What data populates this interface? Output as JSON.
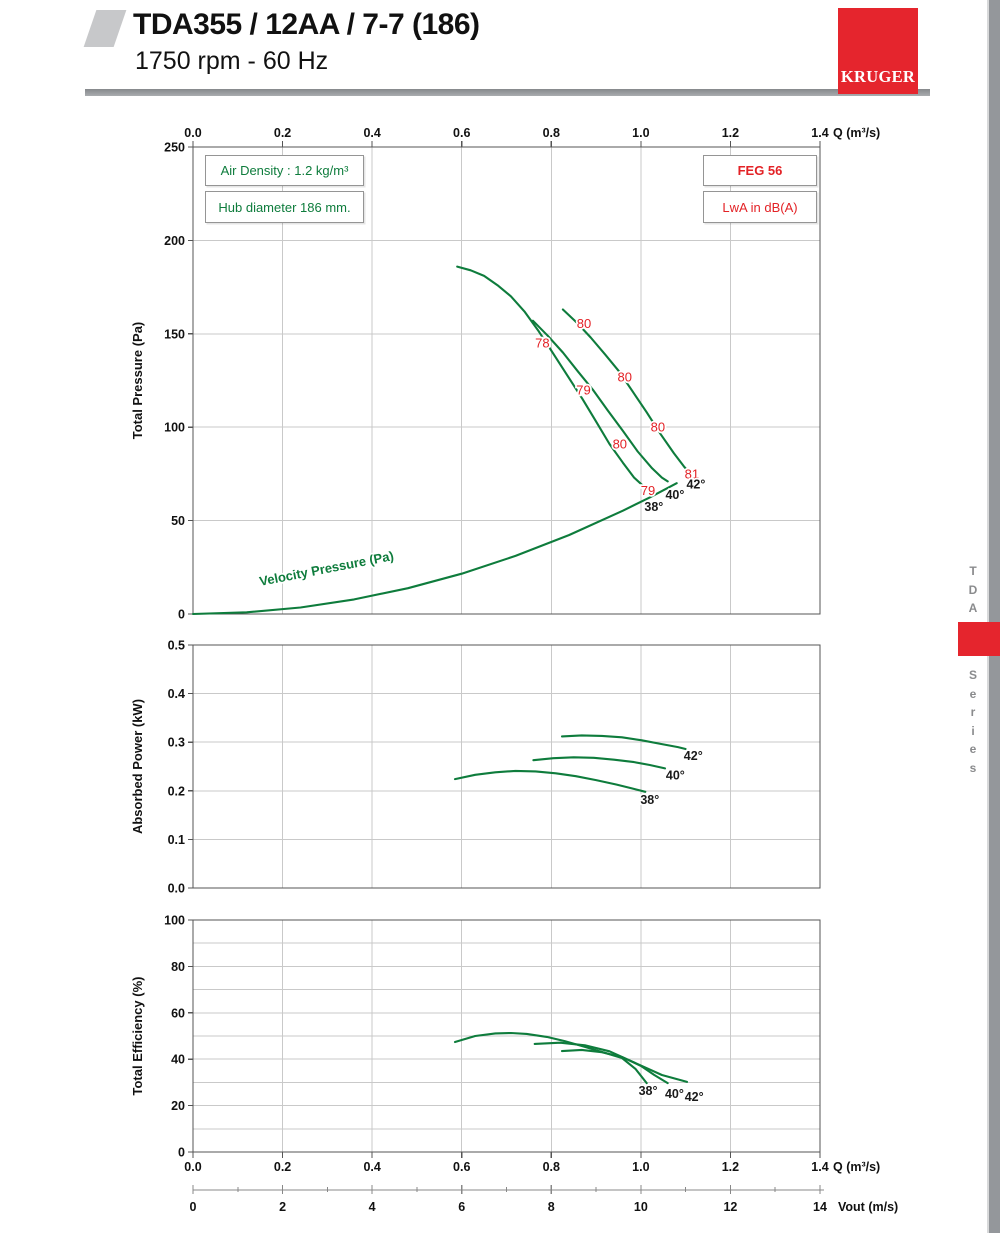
{
  "header": {
    "title": "TDA355 / 12AA / 7-7 (186)",
    "subtitle": "1750 rpm - 60 Hz",
    "logo_text": "KRUGER"
  },
  "sidebar": {
    "top_text": "TDA",
    "bottom_text": "Series"
  },
  "annotations": {
    "air_density": "Air Density : 1.2 kg/m³",
    "hub_diameter": "Hub diameter 186 mm.",
    "feg": "FEG 56",
    "lwa": "LwA in dB(A)"
  },
  "colors": {
    "curve_green": "#0e7c3c",
    "label_red": "#e32226",
    "label_black": "#1a1a1a",
    "grid_gray": "#c9c9c9",
    "axis_gray": "#555555",
    "brand_red": "#e5252d"
  },
  "chart_data": [
    {
      "type": "line",
      "title": "Fan total pressure curves",
      "xlabel": "Q (m³/s)",
      "ylabel": "Total Pressure (Pa)",
      "xlim": [
        0,
        1.4
      ],
      "ylim": [
        0,
        250
      ],
      "xticks": {
        "values": [
          0,
          0.2,
          0.4,
          0.6,
          0.8,
          1.0,
          1.2,
          1.4
        ],
        "labels": [
          "0.0",
          "0.2",
          "0.4",
          "0.6",
          "0.8",
          "1.0",
          "1.2",
          "1.4"
        ]
      },
      "yticks": {
        "values": [
          0,
          50,
          100,
          150,
          200,
          250
        ],
        "labels": [
          "0",
          "50",
          "100",
          "150",
          "200",
          "250"
        ]
      },
      "ygrid": [
        50,
        100,
        150,
        200
      ],
      "xlabel_side": "top",
      "series": [
        {
          "name": "38°",
          "x": [
            0.59,
            0.62,
            0.65,
            0.68,
            0.71,
            0.74,
            0.77,
            0.8,
            0.835,
            0.87,
            0.9,
            0.93,
            0.96,
            0.985,
            1.008
          ],
          "y": [
            186,
            184,
            181,
            176,
            170,
            162,
            152,
            141,
            128,
            115,
            103,
            91,
            81,
            73,
            68
          ]
        },
        {
          "name": "40°",
          "x": [
            0.759,
            0.792,
            0.826,
            0.859,
            0.893,
            0.926,
            0.96,
            0.993,
            1.025,
            1.047,
            1.06
          ],
          "y": [
            157,
            149,
            140,
            130,
            120,
            109,
            98,
            87,
            78,
            73,
            71
          ]
        },
        {
          "name": "42°",
          "x": [
            0.826,
            0.857,
            0.888,
            0.92,
            0.951,
            0.982,
            1.013,
            1.045,
            1.074,
            1.096,
            1.107
          ],
          "y": [
            163,
            156,
            148,
            139,
            130,
            119,
            108,
            96,
            86,
            79,
            76
          ]
        },
        {
          "name": "Velocity Pressure",
          "x": [
            0,
            0.12,
            0.24,
            0.36,
            0.48,
            0.6,
            0.72,
            0.84,
            0.96,
            1.02,
            1.08
          ],
          "y": [
            0,
            0.9,
            3.5,
            7.8,
            13.8,
            21.6,
            31.1,
            42.3,
            55.3,
            62.4,
            70.0
          ]
        }
      ],
      "noise_labels": [
        {
          "text": "78",
          "x": 0.78,
          "y": 145
        },
        {
          "text": "80",
          "x": 0.873,
          "y": 155.5
        },
        {
          "text": "79",
          "x": 0.872,
          "y": 120
        },
        {
          "text": "80",
          "x": 0.964,
          "y": 127
        },
        {
          "text": "80",
          "x": 0.953,
          "y": 91
        },
        {
          "text": "80",
          "x": 1.038,
          "y": 100
        },
        {
          "text": "79",
          "x": 1.016,
          "y": 66
        },
        {
          "text": "81",
          "x": 1.114,
          "y": 75
        }
      ],
      "angle_labels": [
        {
          "text": "38°",
          "x": 1.029,
          "y": 57.5
        },
        {
          "text": "40°",
          "x": 1.076,
          "y": 64
        },
        {
          "text": "42°",
          "x": 1.123,
          "y": 69.5
        }
      ],
      "curve_label": {
        "text": "Velocity Pressure (Pa)",
        "x": 0.3,
        "y": 22,
        "rotation": -11
      }
    },
    {
      "type": "line",
      "title": "Absorbed power curves",
      "xlabel": "",
      "ylabel": "Absorbed Power (kW)",
      "xlim": [
        0,
        1.4
      ],
      "ylim": [
        0,
        0.5
      ],
      "xticks": {
        "values": [
          0,
          0.2,
          0.4,
          0.6,
          0.8,
          1.0,
          1.2,
          1.4
        ],
        "labels": []
      },
      "yticks": {
        "values": [
          0,
          0.1,
          0.2,
          0.3,
          0.4,
          0.5
        ],
        "labels": [
          "0.0",
          "0.1",
          "0.2",
          "0.3",
          "0.4",
          "0.5"
        ]
      },
      "ygrid": [
        0.1,
        0.2,
        0.3,
        0.4
      ],
      "series": [
        {
          "name": "38°",
          "x": [
            0.585,
            0.63,
            0.675,
            0.72,
            0.765,
            0.81,
            0.855,
            0.9,
            0.945,
            0.98,
            1.01
          ],
          "y": [
            0.224,
            0.233,
            0.238,
            0.241,
            0.24,
            0.236,
            0.23,
            0.222,
            0.213,
            0.205,
            0.198
          ]
        },
        {
          "name": "40°",
          "x": [
            0.76,
            0.805,
            0.85,
            0.895,
            0.94,
            0.985,
            1.02,
            1.054
          ],
          "y": [
            0.263,
            0.267,
            0.269,
            0.268,
            0.264,
            0.259,
            0.253,
            0.246
          ]
        },
        {
          "name": "42°",
          "x": [
            0.824,
            0.868,
            0.913,
            0.958,
            1.002,
            1.047,
            1.083,
            1.1
          ],
          "y": [
            0.312,
            0.314,
            0.313,
            0.31,
            0.304,
            0.296,
            0.29,
            0.286
          ]
        }
      ],
      "noise_labels": [],
      "angle_labels": [
        {
          "text": "38°",
          "x": 1.02,
          "y": 0.182
        },
        {
          "text": "40°",
          "x": 1.077,
          "y": 0.233
        },
        {
          "text": "42°",
          "x": 1.117,
          "y": 0.273
        }
      ]
    },
    {
      "type": "line",
      "title": "Total efficiency curves",
      "xlabel": "Q (m³/s)",
      "ylabel": "Total Efficiency (%)",
      "xlim": [
        0,
        1.4
      ],
      "ylim": [
        0,
        100
      ],
      "xticks": {
        "values": [
          0,
          0.2,
          0.4,
          0.6,
          0.8,
          1.0,
          1.2,
          1.4
        ],
        "labels": [
          "0.0",
          "0.2",
          "0.4",
          "0.6",
          "0.8",
          "1.0",
          "1.2",
          "1.4"
        ]
      },
      "yticks": {
        "values": [
          0,
          20,
          40,
          60,
          80,
          100
        ],
        "labels": [
          "0",
          "20",
          "40",
          "60",
          "80",
          "100"
        ]
      },
      "ygrid": [
        10,
        20,
        30,
        40,
        50,
        60,
        70,
        80,
        90
      ],
      "xlabel_side": "bottom",
      "series": [
        {
          "name": "38°",
          "x": [
            0.585,
            0.63,
            0.675,
            0.71,
            0.745,
            0.79,
            0.83,
            0.875,
            0.92,
            0.958,
            0.988,
            1.013
          ],
          "y": [
            47.4,
            50.0,
            51.1,
            51.3,
            50.9,
            49.6,
            47.8,
            45.3,
            42.7,
            40.5,
            35.8,
            29.7
          ]
        },
        {
          "name": "40°",
          "x": [
            0.763,
            0.82,
            0.875,
            0.93,
            0.958,
            1.0,
            1.03,
            1.06
          ],
          "y": [
            46.6,
            47.1,
            46.0,
            43.4,
            41.0,
            37.1,
            33.2,
            29.7
          ]
        },
        {
          "name": "42°",
          "x": [
            0.824,
            0.868,
            0.913,
            0.958,
            1.002,
            1.047,
            1.103
          ],
          "y": [
            43.5,
            44.0,
            43.0,
            40.9,
            37.1,
            33.2,
            30.2
          ]
        }
      ],
      "noise_labels": [],
      "angle_labels": [
        {
          "text": "38°",
          "x": 1.016,
          "y": 26.5
        },
        {
          "text": "40°",
          "x": 1.075,
          "y": 25.3
        },
        {
          "text": "42°",
          "x": 1.119,
          "y": 24.0
        }
      ],
      "secondary_axis": {
        "label": "Vout (m/s)",
        "range": [
          0,
          14
        ],
        "tick_values": [
          0,
          2,
          4,
          6,
          8,
          10,
          12,
          14
        ],
        "tick_labels": [
          "0",
          "2",
          "4",
          "6",
          "8",
          "10",
          "12",
          "14"
        ],
        "minor_values": [
          1,
          3,
          5,
          7,
          9,
          11,
          13
        ]
      }
    }
  ]
}
